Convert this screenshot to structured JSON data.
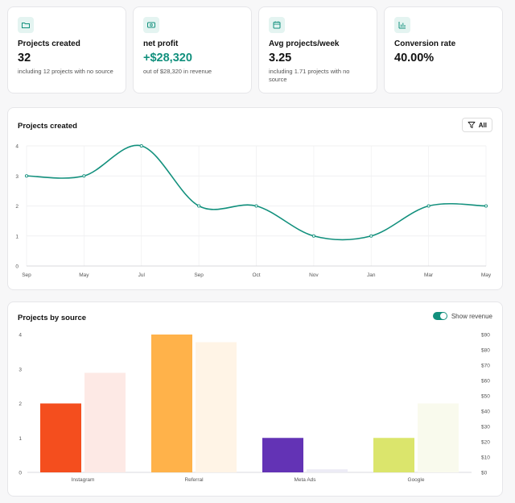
{
  "stats": [
    {
      "label": "Projects created",
      "value": "32",
      "sub": "including 12 projects with no source",
      "icon": "folder-icon",
      "accent": false
    },
    {
      "label": "net profit",
      "value": "+$28,320",
      "sub": "out of $28,320 in revenue",
      "icon": "money-icon",
      "accent": true
    },
    {
      "label": "Avg projects/week",
      "value": "3.25",
      "sub": "including 1.71 projects with no source",
      "icon": "calendar-icon",
      "accent": false
    },
    {
      "label": "Conversion rate",
      "value": "40.00%",
      "sub": "",
      "icon": "bar-chart-icon",
      "accent": false
    }
  ],
  "colors": {
    "accent": "#12907d",
    "icon_bg": "#e4f4f1"
  },
  "projects_chart": {
    "title": "Projects created",
    "filter_label": "All"
  },
  "source_chart": {
    "title": "Projects by source",
    "toggle_label": "Show revenue",
    "toggle_on": true
  },
  "chart_data": [
    {
      "type": "line",
      "title": "Projects created",
      "x": [
        "Sep",
        "May",
        "Jul",
        "Sep",
        "Oct",
        "Nov",
        "Jan",
        "Mar",
        "May"
      ],
      "series": [
        {
          "values": [
            3,
            3,
            4,
            2,
            2,
            1,
            1,
            2,
            2
          ],
          "color": "#12907d"
        }
      ],
      "ylim": [
        0,
        4
      ],
      "yticks": [
        "0",
        "1",
        "2",
        "3",
        "4"
      ],
      "grid": true
    },
    {
      "type": "bar",
      "title": "Projects by source",
      "categories": [
        "Instagram",
        "Referral",
        "Meta Ads",
        "Google"
      ],
      "series": [
        {
          "values": [
            2,
            4,
            1,
            1
          ],
          "colors": [
            "#f44e1e",
            "#ffb24a",
            "#6333b5",
            "#dbe56c"
          ]
        },
        {
          "values": [
            65,
            85,
            2,
            45
          ],
          "colors": [
            "#fde9e5",
            "#fff4e6",
            "#ecebf5",
            "#f9faed"
          ]
        }
      ],
      "ylim": [
        0,
        4
      ],
      "yticks": [
        "0",
        "1",
        "2",
        "3",
        "4"
      ],
      "y2lim": [
        0,
        90
      ],
      "y2ticks": [
        "$0",
        "$10",
        "$20",
        "$30",
        "$40",
        "$50",
        "$60",
        "$70",
        "$80",
        "$90"
      ]
    }
  ]
}
